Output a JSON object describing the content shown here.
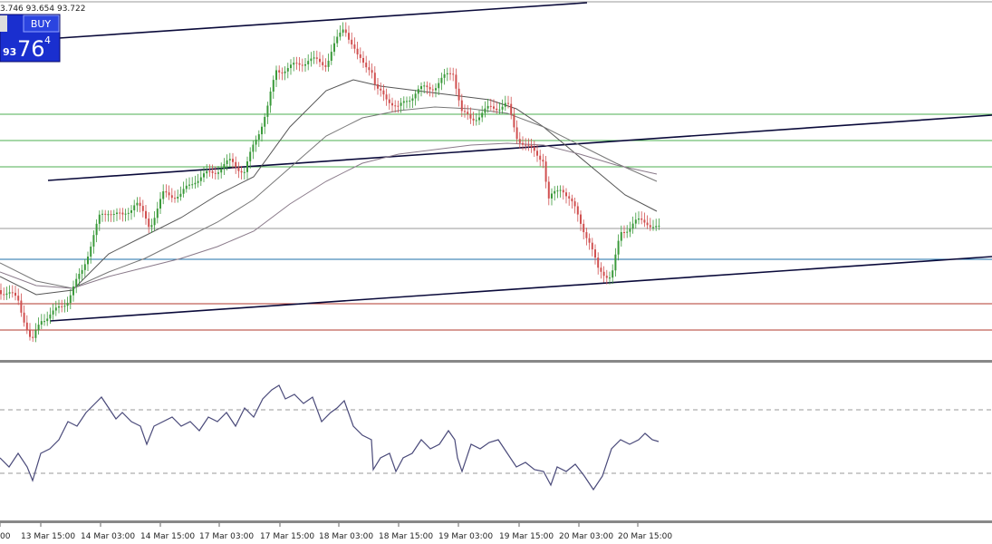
{
  "header_quote": "3.746 93.654 93.722",
  "trade_panel": {
    "button": "BUY",
    "price_prefix": "93",
    "price_big": "76",
    "price_super": "4"
  },
  "time_axis": [
    "00",
    "13 Mar 15:00",
    "14 Mar 03:00",
    "14 Mar 15:00",
    "17 Mar 03:00",
    "17 Mar 15:00",
    "18 Mar 03:00",
    "18 Mar 15:00",
    "19 Mar 03:00",
    "19 Mar 15:00",
    "20 Mar 03:00",
    "20 Mar 15:00"
  ]
}
